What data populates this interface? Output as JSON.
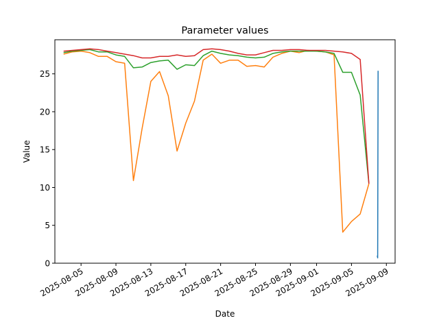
{
  "chart_data": {
    "type": "line",
    "title": "Parameter values",
    "xlabel": "Date",
    "ylabel": "Value",
    "xlim": [
      "2025-08-02",
      "2025-09-10"
    ],
    "ylim": [
      0,
      29.5
    ],
    "grid": false,
    "legend": "none",
    "x_ticks": [
      "2025-08-05",
      "2025-08-09",
      "2025-08-13",
      "2025-08-17",
      "2025-08-21",
      "2025-08-25",
      "2025-08-29",
      "2025-09-01",
      "2025-09-05",
      "2025-09-09"
    ],
    "x_tick_labels": [
      "2025-08-05",
      "2025-08-09",
      "2025-08-13",
      "2025-08-17",
      "2025-08-21",
      "2025-08-25",
      "2025-08-29",
      "2025-09-01",
      "2025-09-05",
      "2025-09-09"
    ],
    "y_ticks": [
      0,
      5,
      10,
      15,
      20,
      25
    ],
    "y_tick_labels": [
      "0",
      "5",
      "10",
      "15",
      "20",
      "25"
    ],
    "series": [
      {
        "color": "#1f77b4",
        "points": [
          [
            "2025-09-08",
            1.0
          ],
          [
            "2025-09-08",
            0.7
          ],
          [
            "2025-09-08",
            25.4
          ]
        ]
      },
      {
        "color": "#ff7f0e",
        "points": [
          [
            "2025-08-03",
            27.6
          ],
          [
            "2025-08-04",
            27.9
          ],
          [
            "2025-08-05",
            28.0
          ],
          [
            "2025-08-06",
            27.8
          ],
          [
            "2025-08-07",
            27.3
          ],
          [
            "2025-08-08",
            27.3
          ],
          [
            "2025-08-09",
            26.6
          ],
          [
            "2025-08-10",
            26.4
          ],
          [
            "2025-08-11",
            10.9
          ],
          [
            "2025-08-12",
            17.8
          ],
          [
            "2025-08-13",
            24.0
          ],
          [
            "2025-08-14",
            25.3
          ],
          [
            "2025-08-15",
            22.1
          ],
          [
            "2025-08-16",
            14.8
          ],
          [
            "2025-08-17",
            18.5
          ],
          [
            "2025-08-18",
            21.4
          ],
          [
            "2025-08-19",
            26.8
          ],
          [
            "2025-08-20",
            27.6
          ],
          [
            "2025-08-21",
            26.4
          ],
          [
            "2025-08-22",
            26.8
          ],
          [
            "2025-08-23",
            26.8
          ],
          [
            "2025-08-24",
            26.0
          ],
          [
            "2025-08-25",
            26.1
          ],
          [
            "2025-08-26",
            25.9
          ],
          [
            "2025-08-27",
            27.2
          ],
          [
            "2025-08-28",
            27.7
          ],
          [
            "2025-08-29",
            28.0
          ],
          [
            "2025-08-30",
            27.8
          ],
          [
            "2025-08-31",
            28.1
          ],
          [
            "2025-09-01",
            28.0
          ],
          [
            "2025-09-02",
            27.9
          ],
          [
            "2025-09-03",
            27.5
          ],
          [
            "2025-09-04",
            4.1
          ],
          [
            "2025-09-05",
            5.5
          ],
          [
            "2025-09-06",
            6.5
          ],
          [
            "2025-09-07",
            10.5
          ]
        ]
      },
      {
        "color": "#2ca02c",
        "points": [
          [
            "2025-08-03",
            27.8
          ],
          [
            "2025-08-04",
            28.0
          ],
          [
            "2025-08-05",
            28.1
          ],
          [
            "2025-08-06",
            28.2
          ],
          [
            "2025-08-07",
            27.9
          ],
          [
            "2025-08-08",
            27.9
          ],
          [
            "2025-08-09",
            27.5
          ],
          [
            "2025-08-10",
            27.3
          ],
          [
            "2025-08-11",
            25.8
          ],
          [
            "2025-08-12",
            25.9
          ],
          [
            "2025-08-13",
            26.5
          ],
          [
            "2025-08-14",
            26.7
          ],
          [
            "2025-08-15",
            26.8
          ],
          [
            "2025-08-16",
            25.6
          ],
          [
            "2025-08-17",
            26.2
          ],
          [
            "2025-08-18",
            26.1
          ],
          [
            "2025-08-19",
            27.4
          ],
          [
            "2025-08-20",
            28.0
          ],
          [
            "2025-08-21",
            27.7
          ],
          [
            "2025-08-22",
            27.5
          ],
          [
            "2025-08-23",
            27.4
          ],
          [
            "2025-08-24",
            27.2
          ],
          [
            "2025-08-25",
            27.1
          ],
          [
            "2025-08-26",
            27.2
          ],
          [
            "2025-08-27",
            27.7
          ],
          [
            "2025-08-28",
            27.9
          ],
          [
            "2025-08-29",
            28.0
          ],
          [
            "2025-08-30",
            28.0
          ],
          [
            "2025-08-31",
            28.0
          ],
          [
            "2025-09-01",
            28.0
          ],
          [
            "2025-09-02",
            27.9
          ],
          [
            "2025-09-03",
            27.7
          ],
          [
            "2025-09-04",
            25.2
          ],
          [
            "2025-09-05",
            25.2
          ],
          [
            "2025-09-06",
            22.2
          ],
          [
            "2025-09-07",
            10.5
          ]
        ]
      },
      {
        "color": "#d62728",
        "points": [
          [
            "2025-08-03",
            28.0
          ],
          [
            "2025-08-04",
            28.1
          ],
          [
            "2025-08-05",
            28.2
          ],
          [
            "2025-08-06",
            28.3
          ],
          [
            "2025-08-07",
            28.2
          ],
          [
            "2025-08-08",
            28.0
          ],
          [
            "2025-08-09",
            27.8
          ],
          [
            "2025-08-10",
            27.6
          ],
          [
            "2025-08-11",
            27.4
          ],
          [
            "2025-08-12",
            27.1
          ],
          [
            "2025-08-13",
            27.1
          ],
          [
            "2025-08-14",
            27.3
          ],
          [
            "2025-08-15",
            27.3
          ],
          [
            "2025-08-16",
            27.5
          ],
          [
            "2025-08-17",
            27.3
          ],
          [
            "2025-08-18",
            27.4
          ],
          [
            "2025-08-19",
            28.2
          ],
          [
            "2025-08-20",
            28.3
          ],
          [
            "2025-08-21",
            28.2
          ],
          [
            "2025-08-22",
            28.0
          ],
          [
            "2025-08-23",
            27.7
          ],
          [
            "2025-08-24",
            27.5
          ],
          [
            "2025-08-25",
            27.5
          ],
          [
            "2025-08-26",
            27.8
          ],
          [
            "2025-08-27",
            28.1
          ],
          [
            "2025-08-28",
            28.1
          ],
          [
            "2025-08-29",
            28.2
          ],
          [
            "2025-08-30",
            28.2
          ],
          [
            "2025-08-31",
            28.1
          ],
          [
            "2025-09-01",
            28.1
          ],
          [
            "2025-09-02",
            28.1
          ],
          [
            "2025-09-03",
            28.0
          ],
          [
            "2025-09-04",
            27.9
          ],
          [
            "2025-09-05",
            27.7
          ],
          [
            "2025-09-06",
            26.9
          ],
          [
            "2025-09-07",
            10.5
          ]
        ]
      }
    ]
  }
}
